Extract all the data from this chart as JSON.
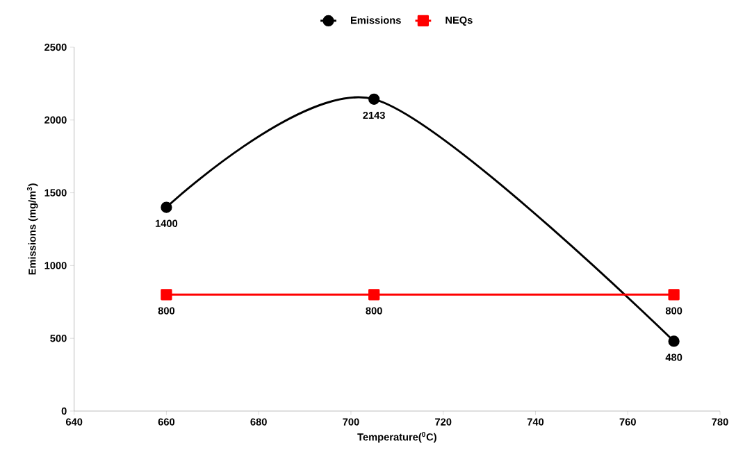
{
  "chart_data": {
    "type": "line",
    "xlabel": "Temperature($^{0}$C)",
    "ylabel": "Emissions (mg/m$^{3}$)",
    "xlim": [
      640,
      780
    ],
    "xticks": [
      640,
      660,
      680,
      700,
      720,
      740,
      760,
      780
    ],
    "ylim": [
      0,
      2500
    ],
    "yticks": [
      0,
      500,
      1000,
      1500,
      2000,
      2500
    ],
    "grid": false,
    "legend": "top",
    "data_labels": true,
    "series": [
      {
        "name": "Emissions",
        "color": "#000000",
        "marker": "circle",
        "x": [
          660,
          705,
          770
        ],
        "values": [
          1400,
          2143,
          480
        ]
      },
      {
        "name": "NEQs",
        "color": "#ff0000",
        "marker": "square",
        "x": [
          660,
          705,
          770
        ],
        "values": [
          800,
          800,
          800
        ]
      }
    ]
  }
}
